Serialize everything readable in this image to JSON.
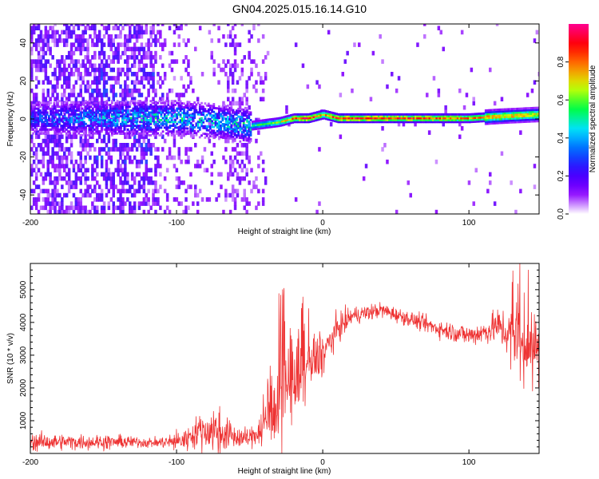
{
  "title": "GN04.2025.015.16.14.G10",
  "chart_data": [
    {
      "type": "heatmap",
      "title": "GN04.2025.015.16.14.G10",
      "xlabel": "Height of straight line (km)",
      "ylabel": "Frequency (Hz)",
      "xlim": [
        -200,
        148
      ],
      "ylim": [
        -50,
        50
      ],
      "xticks": [
        -200,
        -100,
        0,
        100
      ],
      "yticks": [
        -40,
        -20,
        0,
        20,
        40
      ],
      "colorbar": {
        "label": "Normalized spectral amplitude",
        "range": [
          0,
          1
        ],
        "ticks": [
          0.0,
          0.2,
          0.4,
          0.6,
          0.8
        ],
        "colormap": [
          "#ffffff",
          "#8a00ff",
          "#3a00ff",
          "#0060ff",
          "#00e0ff",
          "#00ff40",
          "#d0ff00",
          "#ff8000",
          "#ff0000",
          "#ff0090"
        ]
      },
      "ridge": {
        "x": [
          -200,
          -140,
          -100,
          -70,
          -50,
          -40,
          -30,
          -20,
          -10,
          0,
          10,
          50,
          100,
          120,
          148
        ],
        "frequency": [
          0,
          0,
          0,
          -2,
          -4,
          -3,
          -2,
          0,
          0,
          2,
          0,
          0,
          0,
          1,
          2
        ],
        "amplitude": [
          0.3,
          0.45,
          0.5,
          0.45,
          0.5,
          0.55,
          0.65,
          0.85,
          0.9,
          0.75,
          0.9,
          0.88,
          0.8,
          0.75,
          0.7
        ]
      }
    },
    {
      "type": "line",
      "xlabel": "Height of straight line (km)",
      "ylabel": "SNR (10 * v/v)",
      "xlim": [
        -200,
        148
      ],
      "ylim": [
        0,
        5800
      ],
      "xticks": [
        -200,
        -100,
        0,
        100
      ],
      "yticks": [
        1000,
        2000,
        3000,
        4000,
        5000
      ],
      "color": "#ee3333",
      "series": [
        {
          "name": "SNR",
          "x": [
            -200,
            -175,
            -150,
            -130,
            -115,
            -105,
            -95,
            -85,
            -75,
            -60,
            -50,
            -40,
            -30,
            -20,
            -10,
            0,
            10,
            20,
            40,
            60,
            80,
            100,
            110,
            120,
            135,
            148
          ],
          "baseline": [
            350,
            350,
            350,
            350,
            330,
            350,
            400,
            700,
            700,
            500,
            450,
            900,
            1500,
            2100,
            2600,
            3000,
            3800,
            4200,
            4380,
            4100,
            3800,
            3600,
            3700,
            3900,
            3300,
            3100
          ],
          "spread": [
            300,
            250,
            250,
            200,
            150,
            250,
            400,
            500,
            900,
            400,
            300,
            800,
            1200,
            1300,
            1100,
            700,
            500,
            300,
            250,
            250,
            300,
            350,
            400,
            600,
            1200,
            1500
          ]
        }
      ]
    }
  ]
}
